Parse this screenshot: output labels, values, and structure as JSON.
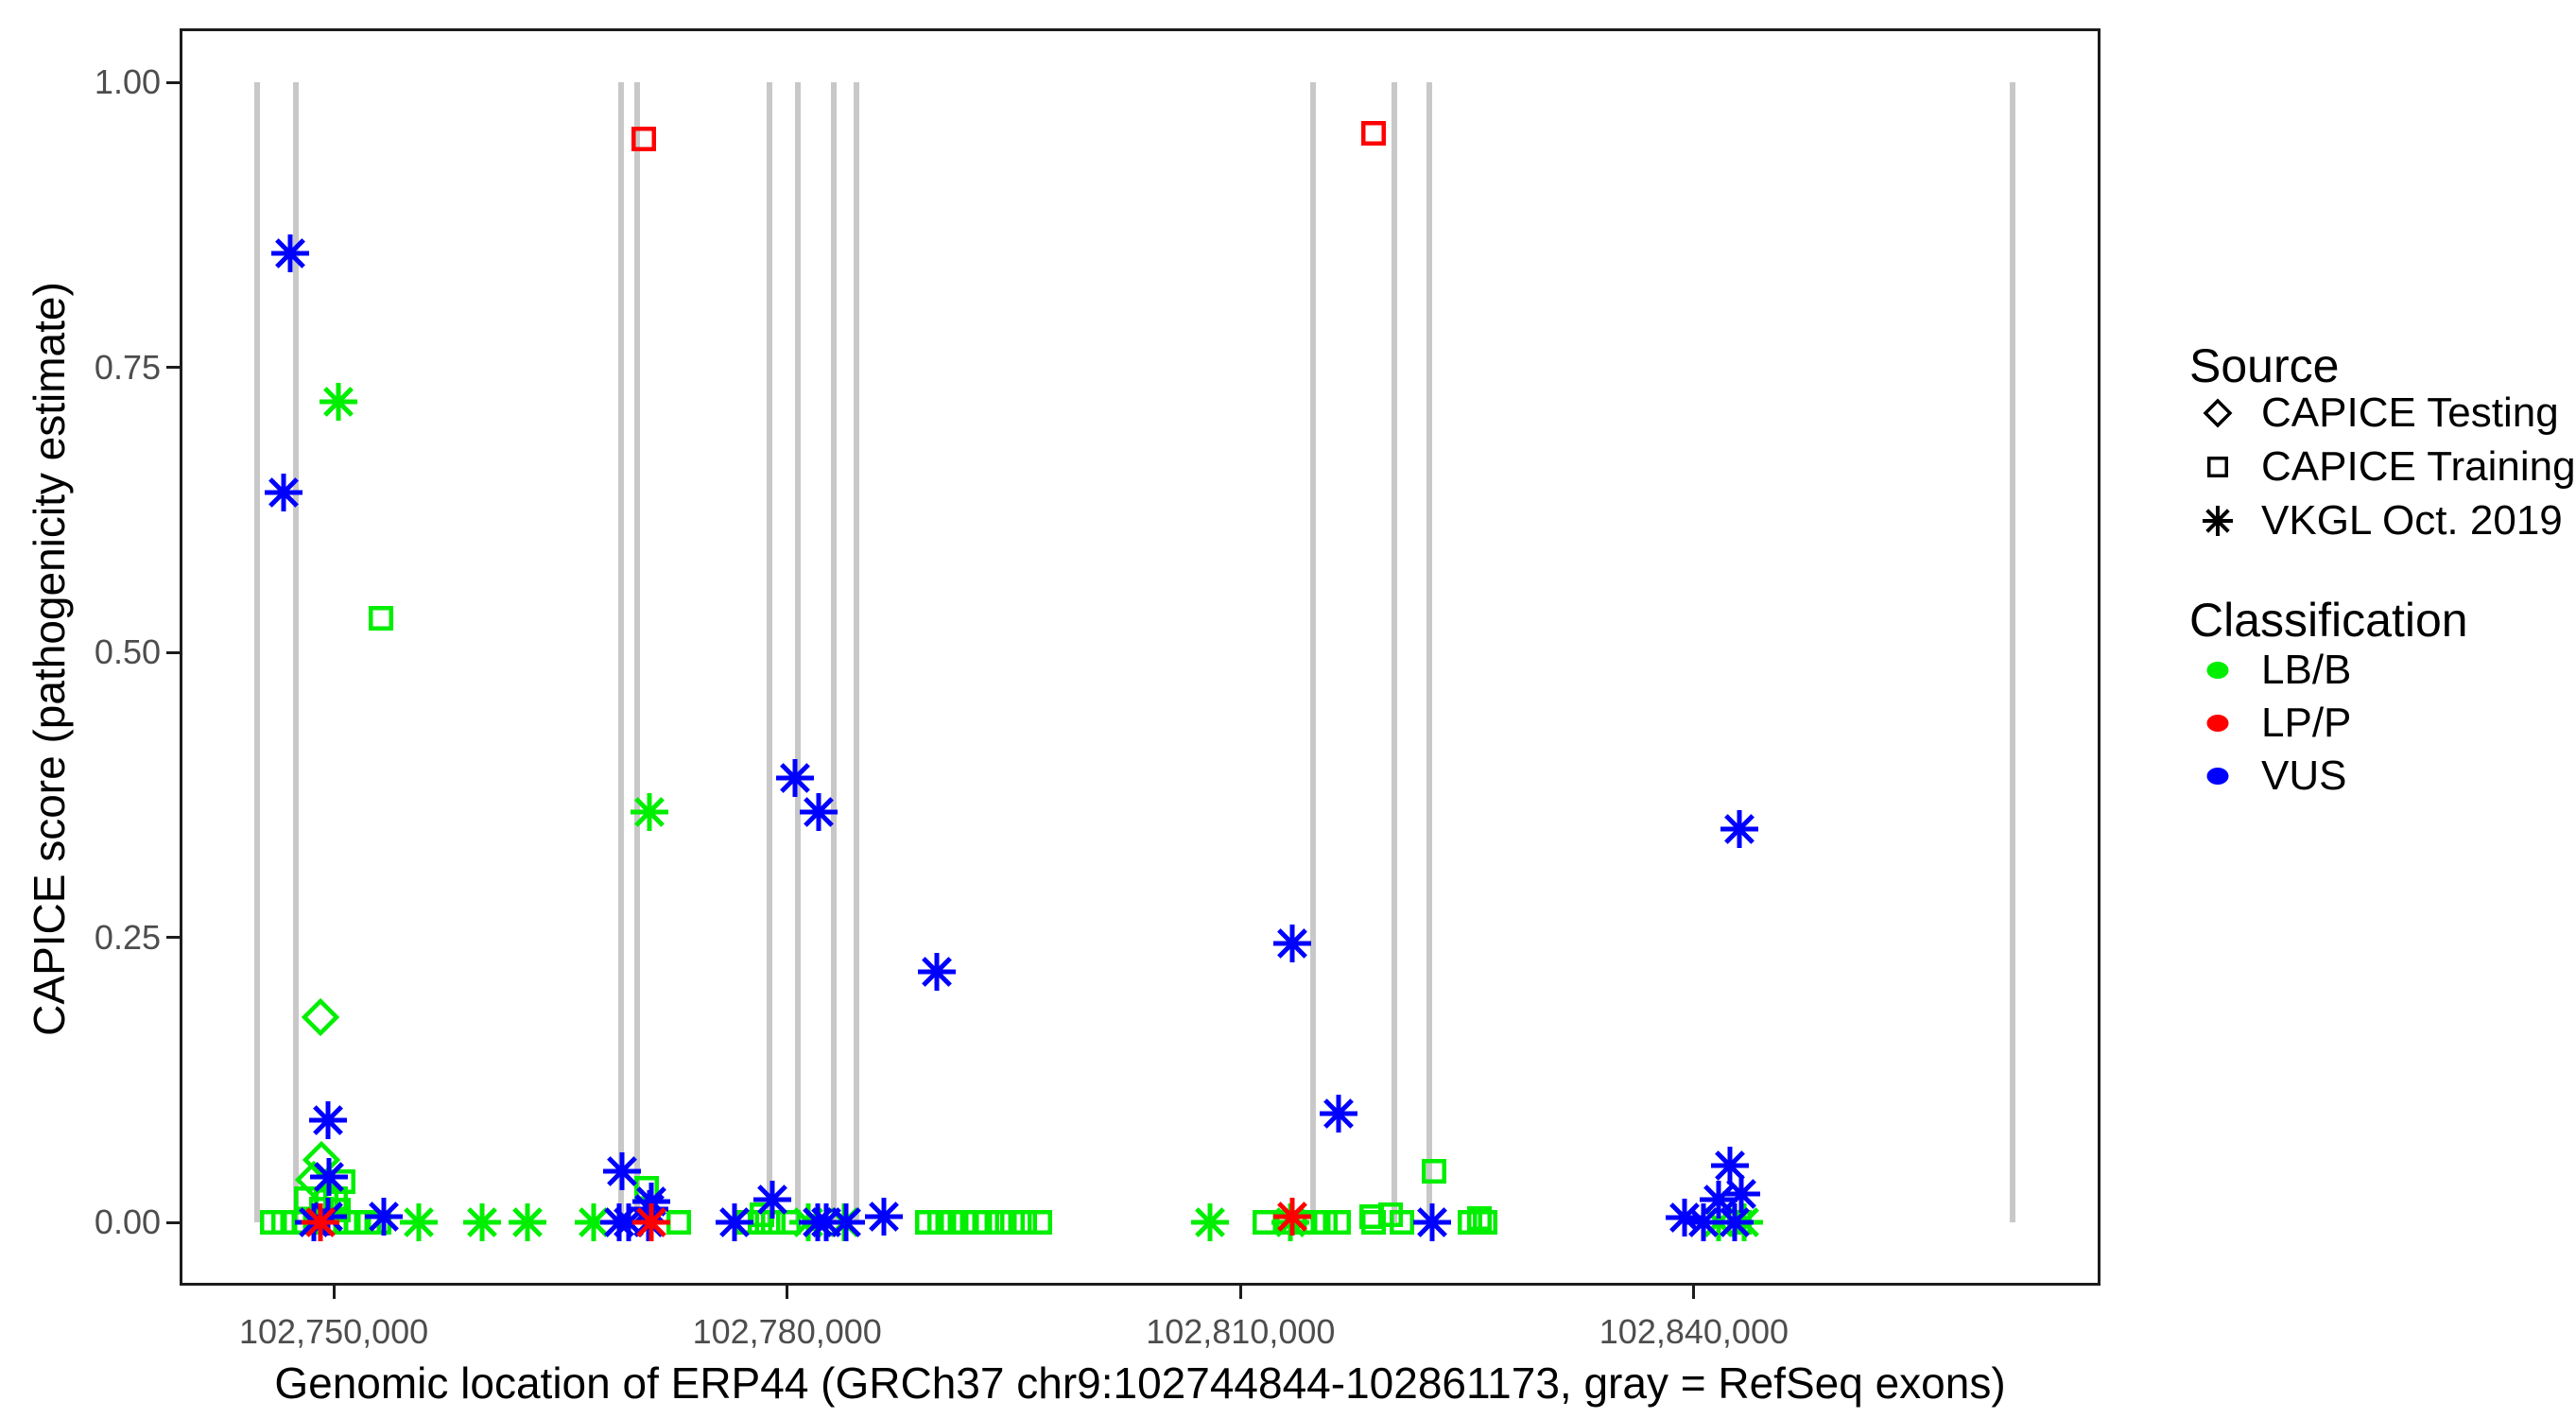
{
  "figure_background": "#ffffff",
  "colors": {
    "LB/B": "#00ee00",
    "LP/P": "#ff0000",
    "VUS": "#0000ff",
    "exon_line": "#c8c8c8",
    "axis_text": "#4d4d4d",
    "panel_border": "#1c1c1c"
  },
  "legend": {
    "source": {
      "title": "Source",
      "items": [
        {
          "label": "CAPICE Testing",
          "marker": "diamond",
          "code": "testing"
        },
        {
          "label": "CAPICE Training",
          "marker": "square",
          "code": "training"
        },
        {
          "label": "VKGL Oct. 2019",
          "marker": "asterisk",
          "code": "vkgl"
        }
      ]
    },
    "classification": {
      "title": "Classification",
      "items": [
        {
          "label": "LB/B",
          "color": "#00ee00"
        },
        {
          "label": "LP/P",
          "color": "#ff0000"
        },
        {
          "label": "VUS",
          "color": "#0000ff"
        }
      ]
    }
  },
  "chart_data": {
    "type": "scatter",
    "title": "",
    "xlabel": "Genomic location of ERP44 (GRCh37 chr9:102744844-102861173, gray = RefSeq exons)",
    "ylabel": "CAPICE score (pathogenicity estimate)",
    "x_domain": [
      102739800,
      102866900
    ],
    "y_domain": [
      0,
      1
    ],
    "x_ticks": [
      {
        "value": 102750000,
        "label": "102,750,000"
      },
      {
        "value": 102780000,
        "label": "102,780,000"
      },
      {
        "value": 102810000,
        "label": "102,810,000"
      },
      {
        "value": 102840000,
        "label": "102,840,000"
      }
    ],
    "y_ticks": [
      {
        "value": 0.0,
        "label": "0.00"
      },
      {
        "value": 0.25,
        "label": "0.25"
      },
      {
        "value": 0.5,
        "label": "0.50"
      },
      {
        "value": 0.75,
        "label": "0.75"
      },
      {
        "value": 1.0,
        "label": "1.00"
      }
    ],
    "exon_note": "gray vertical lines = RefSeq exons",
    "exons_bp": [
      102744900,
      102747500,
      102769000,
      102770100,
      102778800,
      102780700,
      102783100,
      102784600,
      102814800,
      102820200,
      102822500,
      102861100
    ],
    "points_format": [
      "bp",
      "score",
      "source",
      "classification"
    ],
    "points": [
      [
        102745900,
        0,
        "training",
        "LB/B"
      ],
      [
        102746700,
        0,
        "training",
        "LB/B"
      ],
      [
        102746700,
        0.64,
        "vkgl",
        "VUS"
      ],
      [
        102747100,
        0.85,
        "vkgl",
        "VUS"
      ],
      [
        102747400,
        0,
        "training",
        "LB/B"
      ],
      [
        102748100,
        0,
        "training",
        "LB/B"
      ],
      [
        102748200,
        0.021,
        "training",
        "LB/B"
      ],
      [
        102748700,
        0.037,
        "testing",
        "LB/B"
      ],
      [
        102748700,
        0,
        "vkgl",
        "VUS"
      ],
      [
        102748800,
        0,
        "training",
        "LB/B"
      ],
      [
        102749100,
        0.18,
        "testing",
        "LB/B"
      ],
      [
        102749100,
        0,
        "vkgl",
        "LP/P"
      ],
      [
        102749200,
        0.055,
        "testing",
        "LB/B"
      ],
      [
        102749200,
        0.012,
        "training",
        "LB/B"
      ],
      [
        102749400,
        0,
        "training",
        "LB/B"
      ],
      [
        102749500,
        0.019,
        "training",
        "LB/B"
      ],
      [
        102749600,
        0.09,
        "vkgl",
        "VUS"
      ],
      [
        102749600,
        0.005,
        "vkgl",
        "VUS"
      ],
      [
        102749700,
        0.04,
        "vkgl",
        "VUS"
      ],
      [
        102750100,
        0.021,
        "training",
        "LB/B"
      ],
      [
        102750100,
        0,
        "training",
        "LB/B"
      ],
      [
        102750300,
        0.72,
        "vkgl",
        "LB/B"
      ],
      [
        102750300,
        0.011,
        "training",
        "LB/B"
      ],
      [
        102750600,
        0.036,
        "training",
        "LB/B"
      ],
      [
        102750800,
        0,
        "training",
        "LB/B"
      ],
      [
        102751500,
        0,
        "training",
        "LB/B"
      ],
      [
        102752300,
        0,
        "training",
        "LB/B"
      ],
      [
        102753000,
        0,
        "training",
        "LB/B"
      ],
      [
        102753100,
        0.53,
        "training",
        "LB/B"
      ],
      [
        102753300,
        0.005,
        "vkgl",
        "VUS"
      ],
      [
        102755600,
        0,
        "vkgl",
        "LB/B"
      ],
      [
        102759800,
        0,
        "vkgl",
        "LB/B"
      ],
      [
        102762800,
        0,
        "vkgl",
        "LB/B"
      ],
      [
        102767200,
        0,
        "vkgl",
        "LB/B"
      ],
      [
        102768900,
        0,
        "vkgl",
        "VUS"
      ],
      [
        102769100,
        0.045,
        "vkgl",
        "VUS"
      ],
      [
        102769500,
        0,
        "vkgl",
        "VUS"
      ],
      [
        102770500,
        0.95,
        "training",
        "LP/P"
      ],
      [
        102770700,
        0.03,
        "training",
        "LB/B"
      ],
      [
        102770800,
        0,
        "vkgl",
        "VUS"
      ],
      [
        102770900,
        0.36,
        "vkgl",
        "LB/B"
      ],
      [
        102770900,
        0.012,
        "vkgl",
        "VUS"
      ],
      [
        102771000,
        0.018,
        "vkgl",
        "VUS"
      ],
      [
        102771000,
        0,
        "vkgl",
        "LP/P"
      ],
      [
        102772800,
        0,
        "training",
        "LB/B"
      ],
      [
        102776500,
        0,
        "vkgl",
        "VUS"
      ],
      [
        102777300,
        0,
        "training",
        "LB/B"
      ],
      [
        102778200,
        0,
        "training",
        "LB/B"
      ],
      [
        102778300,
        0.007,
        "training",
        "LB/B"
      ],
      [
        102779000,
        0.02,
        "vkgl",
        "VUS"
      ],
      [
        102779100,
        0,
        "training",
        "LB/B"
      ],
      [
        102780100,
        0,
        "training",
        "LB/B"
      ],
      [
        102780500,
        0.39,
        "vkgl",
        "VUS"
      ],
      [
        102781400,
        0,
        "vkgl",
        "LB/B"
      ],
      [
        102782000,
        0,
        "vkgl",
        "VUS"
      ],
      [
        102782100,
        0.36,
        "vkgl",
        "VUS"
      ],
      [
        102782600,
        0,
        "vkgl",
        "VUS"
      ],
      [
        102783800,
        0,
        "vkgl",
        "LB/B"
      ],
      [
        102783900,
        0,
        "vkgl",
        "VUS"
      ],
      [
        102786400,
        0.005,
        "vkgl",
        "VUS"
      ],
      [
        102789300,
        0,
        "training",
        "LB/B"
      ],
      [
        102789900,
        0.22,
        "vkgl",
        "VUS"
      ],
      [
        102790100,
        0,
        "training",
        "LB/B"
      ],
      [
        102790900,
        0,
        "training",
        "LB/B"
      ],
      [
        102791700,
        0,
        "training",
        "LB/B"
      ],
      [
        102792500,
        0,
        "training",
        "LB/B"
      ],
      [
        102793200,
        0,
        "training",
        "LB/B"
      ],
      [
        102794100,
        0,
        "training",
        "LB/B"
      ],
      [
        102794900,
        0,
        "training",
        "LB/B"
      ],
      [
        102795700,
        0,
        "training",
        "LB/B"
      ],
      [
        102796700,
        0,
        "training",
        "LB/B"
      ],
      [
        102808000,
        0,
        "vkgl",
        "LB/B"
      ],
      [
        102811600,
        0,
        "training",
        "LB/B"
      ],
      [
        102813100,
        0,
        "training",
        "LB/B"
      ],
      [
        102813300,
        0,
        "vkgl",
        "LB/B"
      ],
      [
        102813400,
        0.245,
        "vkgl",
        "VUS"
      ],
      [
        102813400,
        0.005,
        "vkgl",
        "LP/P"
      ],
      [
        102814100,
        0,
        "training",
        "LB/B"
      ],
      [
        102814900,
        0,
        "training",
        "LB/B"
      ],
      [
        102815600,
        0,
        "training",
        "LB/B"
      ],
      [
        102816500,
        0.095,
        "vkgl",
        "VUS"
      ],
      [
        102816500,
        0,
        "training",
        "LB/B"
      ],
      [
        102818700,
        0.005,
        "training",
        "LB/B"
      ],
      [
        102818800,
        0.955,
        "training",
        "LP/P"
      ],
      [
        102818800,
        0,
        "training",
        "LB/B"
      ],
      [
        102819900,
        0.007,
        "training",
        "LB/B"
      ],
      [
        102820700,
        0,
        "training",
        "LB/B"
      ],
      [
        102822700,
        0,
        "vkgl",
        "VUS"
      ],
      [
        102822800,
        0.045,
        "training",
        "LB/B"
      ],
      [
        102825200,
        0,
        "training",
        "LB/B"
      ],
      [
        102825800,
        0.003,
        "training",
        "LB/B"
      ],
      [
        102826200,
        0,
        "training",
        "LB/B"
      ],
      [
        102839400,
        0.004,
        "vkgl",
        "VUS"
      ],
      [
        102840600,
        0,
        "vkgl",
        "VUS"
      ],
      [
        102841600,
        0.02,
        "vkgl",
        "VUS"
      ],
      [
        102841600,
        0,
        "vkgl",
        "LB/B"
      ],
      [
        102842400,
        0.05,
        "vkgl",
        "VUS"
      ],
      [
        102842700,
        0,
        "vkgl",
        "VUS"
      ],
      [
        102843000,
        0.345,
        "vkgl",
        "VUS"
      ],
      [
        102843000,
        0,
        "training",
        "LB/B"
      ],
      [
        102843100,
        0.025,
        "vkgl",
        "VUS"
      ],
      [
        102843300,
        0,
        "vkgl",
        "LB/B"
      ]
    ]
  }
}
